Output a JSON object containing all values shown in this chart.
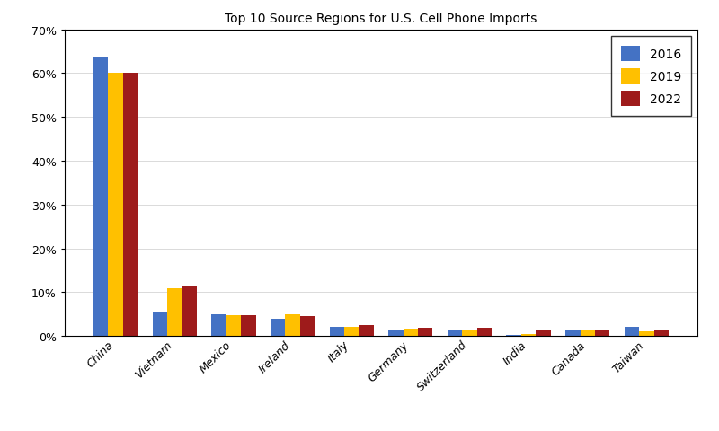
{
  "title": "Top 10 Source Regions for U.S. Cell Phone Imports",
  "categories": [
    "China",
    "Vietnam",
    "Mexico",
    "Ireland",
    "Italy",
    "Germany",
    "Switzerland",
    "India",
    "Canada",
    "Taiwan"
  ],
  "series": {
    "2016": [
      63.5,
      5.5,
      5.0,
      4.0,
      2.0,
      1.5,
      1.3,
      0.3,
      1.5,
      2.0
    ],
    "2019": [
      60.0,
      11.0,
      4.7,
      5.0,
      2.0,
      1.7,
      1.5,
      0.5,
      1.3,
      1.0
    ],
    "2022": [
      60.0,
      11.5,
      4.8,
      4.5,
      2.5,
      1.8,
      1.8,
      1.5,
      1.3,
      1.2
    ]
  },
  "colors": {
    "2016": "#4472C4",
    "2019": "#FFC000",
    "2022": "#9E1B1B"
  },
  "ylim": [
    0,
    70
  ],
  "yticks": [
    0,
    10,
    20,
    30,
    40,
    50,
    60,
    70
  ],
  "ytick_labels": [
    "0%",
    "10%",
    "20%",
    "30%",
    "40%",
    "50%",
    "60%",
    "70%"
  ],
  "legend_loc": "upper right",
  "bar_width": 0.25,
  "figsize": [
    8.0,
    4.81
  ],
  "dpi": 100
}
